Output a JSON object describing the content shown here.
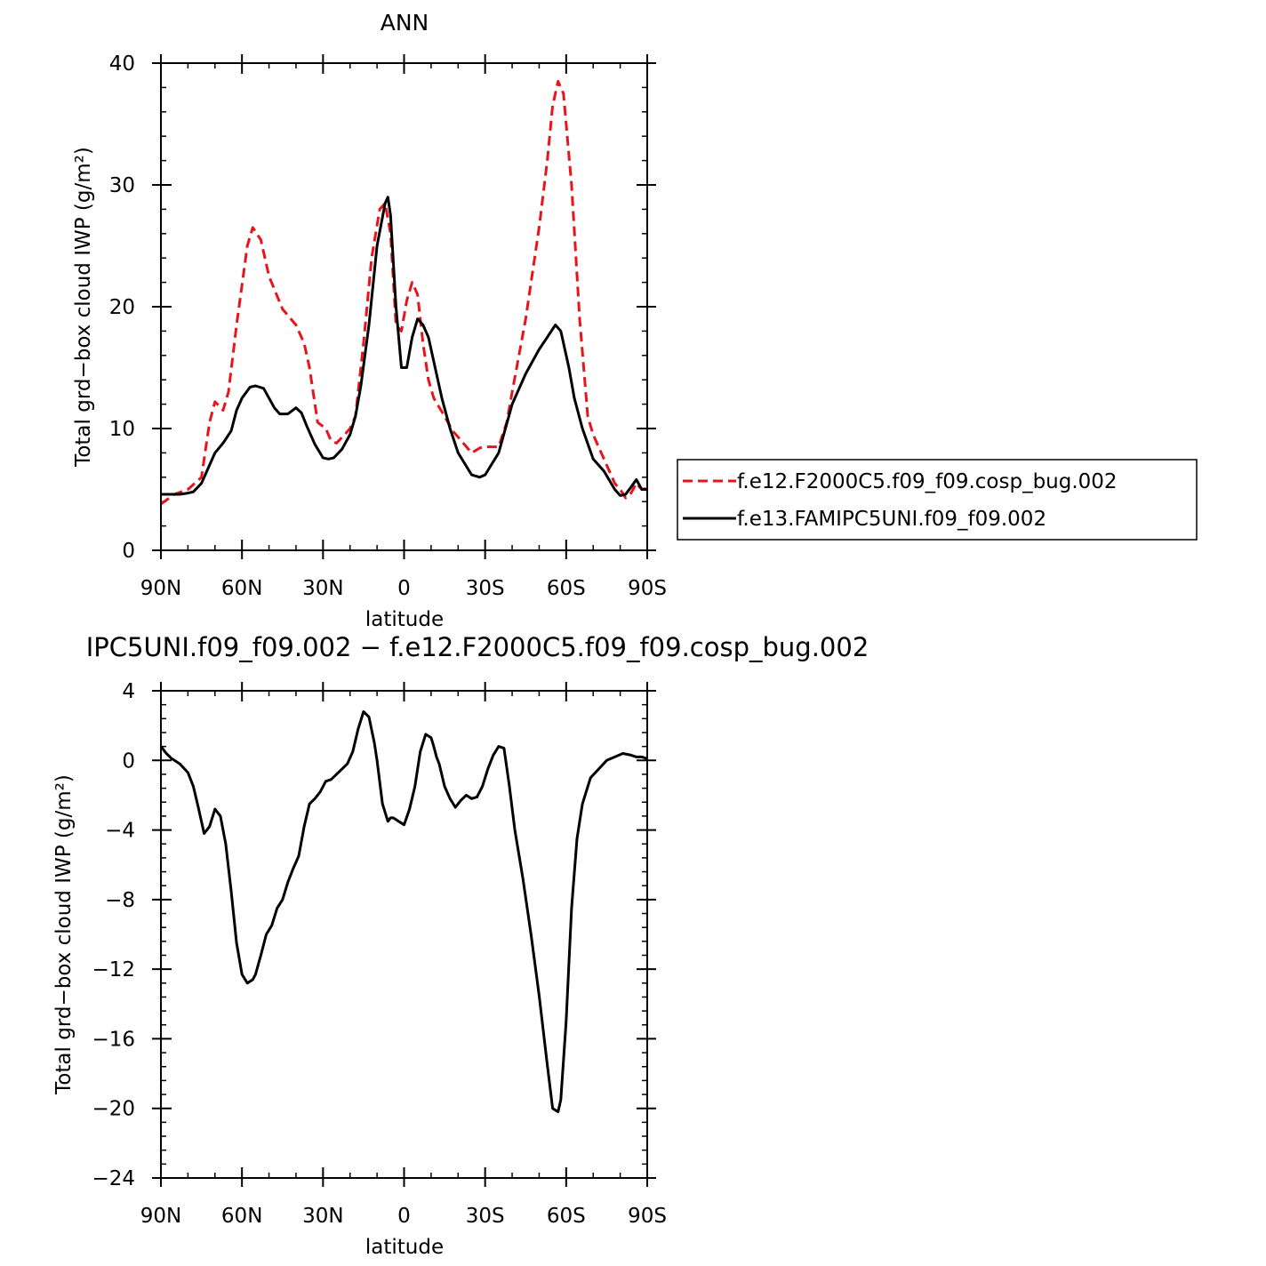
{
  "chart_data": [
    {
      "type": "line",
      "title": "ANN",
      "xlabel": "latitude",
      "ylabel": "Total grd−box cloud IWP (g/m²)",
      "xlim": [
        -90,
        90
      ],
      "ylim": [
        0,
        40
      ],
      "x_ticks": [
        {
          "value": -90,
          "label": "90N"
        },
        {
          "value": -60,
          "label": "60N"
        },
        {
          "value": -30,
          "label": "30N"
        },
        {
          "value": 0,
          "label": "0"
        },
        {
          "value": 30,
          "label": "30S"
        },
        {
          "value": 60,
          "label": "60S"
        },
        {
          "value": 90,
          "label": "90S"
        }
      ],
      "y_ticks": [
        {
          "value": 0,
          "label": "0"
        },
        {
          "value": 10,
          "label": "10"
        },
        {
          "value": 20,
          "label": "20"
        },
        {
          "value": 30,
          "label": "30"
        },
        {
          "value": 40,
          "label": "40"
        }
      ],
      "legend": "right",
      "series": [
        {
          "name": "f.e12.F2000C5.f09_f09.cosp_bug.002",
          "color": "#e8141c",
          "style": "dashed",
          "x": [
            -90,
            -85,
            -80,
            -75,
            -72,
            -70,
            -67,
            -65,
            -62,
            -58,
            -56,
            -53,
            -50,
            -45,
            -40,
            -37,
            -35,
            -32,
            -29,
            -27,
            -25,
            -22,
            -20,
            -18,
            -15,
            -12,
            -9,
            -7,
            -5,
            -3,
            -1,
            1,
            3,
            5,
            7,
            9,
            11,
            15,
            18,
            20,
            25,
            28,
            30,
            32,
            35,
            38,
            40,
            45,
            50,
            53,
            55,
            57,
            59,
            62,
            65,
            68,
            70,
            75,
            78,
            80,
            82,
            84,
            86,
            88,
            90
          ],
          "y": [
            3.8,
            4.6,
            5.0,
            6.0,
            10.5,
            12.2,
            11.5,
            13.0,
            18.5,
            25.0,
            26.5,
            25.5,
            22.5,
            19.8,
            18.5,
            17.0,
            15.0,
            10.5,
            10.0,
            9.0,
            8.8,
            9.5,
            10.0,
            11.0,
            17.0,
            24.0,
            28.0,
            28.5,
            26.0,
            18.5,
            18.0,
            20.5,
            22.0,
            21.0,
            17.0,
            14.0,
            12.5,
            11.0,
            9.8,
            9.3,
            8.0,
            8.4,
            8.5,
            8.5,
            8.5,
            10.5,
            13.0,
            19.0,
            26.5,
            32.0,
            36.5,
            38.5,
            37.5,
            30.0,
            19.0,
            11.0,
            9.5,
            7.0,
            5.5,
            5.0,
            4.3,
            4.7,
            5.5,
            5.0,
            5.1
          ]
        },
        {
          "name": "f.e13.FAMIPC5UNI.f09_f09.002",
          "color": "#000000",
          "style": "solid",
          "x": [
            -90,
            -87,
            -85,
            -83,
            -80,
            -78,
            -75,
            -72,
            -70,
            -67,
            -64,
            -62,
            -60,
            -57,
            -55,
            -52,
            -50,
            -48,
            -46,
            -43,
            -40,
            -38,
            -36,
            -33,
            -30,
            -28,
            -26,
            -23,
            -20,
            -18,
            -16,
            -13,
            -10,
            -7,
            -6,
            -5,
            -3,
            -1,
            1,
            3,
            5,
            7,
            9,
            11,
            14,
            17,
            20,
            25,
            28,
            30,
            35,
            40,
            45,
            50,
            53,
            56,
            58,
            61,
            63,
            66,
            70,
            74,
            78,
            80,
            82,
            84,
            86,
            88,
            90
          ],
          "y": [
            4.6,
            4.6,
            4.6,
            4.6,
            4.7,
            4.8,
            5.5,
            7.0,
            8.0,
            8.8,
            9.8,
            11.5,
            12.5,
            13.4,
            13.5,
            13.3,
            12.5,
            11.7,
            11.2,
            11.2,
            11.7,
            11.3,
            10.2,
            8.7,
            7.6,
            7.5,
            7.6,
            8.3,
            9.5,
            11.0,
            13.5,
            18.5,
            25.0,
            28.5,
            29.0,
            27.5,
            20.0,
            15.0,
            15.0,
            17.5,
            19.0,
            18.5,
            17.5,
            15.5,
            12.5,
            10.0,
            8.0,
            6.2,
            6.0,
            6.2,
            8.0,
            12.0,
            14.5,
            16.5,
            17.5,
            18.5,
            18.0,
            15.0,
            12.5,
            10.0,
            7.5,
            6.5,
            5.0,
            4.5,
            4.6,
            5.2,
            5.8,
            5.0,
            5.0
          ]
        }
      ]
    },
    {
      "type": "line",
      "title": "IPC5UNI.f09_f09.002 − f.e12.F2000C5.f09_f09.cosp_bug.002",
      "xlabel": "latitude",
      "ylabel": "Total grd−box cloud IWP (g/m²)",
      "xlim": [
        -90,
        90
      ],
      "ylim": [
        -24,
        4
      ],
      "x_ticks": [
        {
          "value": -90,
          "label": "90N"
        },
        {
          "value": -60,
          "label": "60N"
        },
        {
          "value": -30,
          "label": "30N"
        },
        {
          "value": 0,
          "label": "0"
        },
        {
          "value": 30,
          "label": "30S"
        },
        {
          "value": 60,
          "label": "60S"
        },
        {
          "value": 90,
          "label": "90S"
        }
      ],
      "y_ticks": [
        {
          "value": 4,
          "label": "4"
        },
        {
          "value": 0,
          "label": "0"
        },
        {
          "value": -4,
          "label": "−4"
        },
        {
          "value": -8,
          "label": "−8"
        },
        {
          "value": -12,
          "label": "−12"
        },
        {
          "value": -16,
          "label": "−16"
        },
        {
          "value": -20,
          "label": "−20"
        },
        {
          "value": -24,
          "label": "−24"
        }
      ],
      "series": [
        {
          "color": "#000000",
          "style": "solid",
          "x": [
            -90,
            -88,
            -86,
            -83,
            -80,
            -78,
            -76,
            -74,
            -72,
            -70,
            -68,
            -66,
            -64,
            -62,
            -60,
            -58,
            -56,
            -55,
            -53,
            -51,
            -49,
            -47,
            -45,
            -43,
            -41,
            -39,
            -37,
            -35,
            -33,
            -31,
            -29,
            -27,
            -25,
            -23,
            -21,
            -19,
            -17,
            -15,
            -13,
            -11,
            -10,
            -8,
            -6,
            -5,
            -4,
            -2,
            0,
            2,
            4,
            6,
            8,
            10,
            11,
            12,
            13,
            15,
            17,
            19,
            21,
            23,
            25,
            27,
            29,
            31,
            33,
            35,
            37,
            39,
            41,
            44,
            47,
            50,
            53,
            55,
            57,
            58,
            60,
            62,
            64,
            66,
            69,
            72,
            75,
            78,
            81,
            84,
            86,
            88,
            90
          ],
          "y": [
            0.8,
            0.4,
            0.1,
            -0.2,
            -0.7,
            -1.5,
            -2.8,
            -4.2,
            -3.8,
            -2.8,
            -3.2,
            -4.8,
            -7.5,
            -10.5,
            -12.3,
            -12.8,
            -12.6,
            -12.3,
            -11.2,
            -10.0,
            -9.5,
            -8.5,
            -8.0,
            -7.0,
            -6.2,
            -5.5,
            -3.8,
            -2.5,
            -2.2,
            -1.8,
            -1.2,
            -1.1,
            -0.8,
            -0.5,
            -0.2,
            0.5,
            1.8,
            2.8,
            2.5,
            1.0,
            0.0,
            -2.5,
            -3.5,
            -3.3,
            -3.3,
            -3.5,
            -3.7,
            -2.8,
            -1.5,
            0.5,
            1.5,
            1.3,
            0.8,
            0.2,
            -0.2,
            -1.5,
            -2.2,
            -2.7,
            -2.3,
            -2.0,
            -2.2,
            -2.1,
            -1.5,
            -0.5,
            0.3,
            0.8,
            0.7,
            -1.5,
            -4.0,
            -6.8,
            -10.0,
            -13.5,
            -17.5,
            -20.0,
            -20.2,
            -19.5,
            -15.0,
            -8.5,
            -4.5,
            -2.5,
            -1.0,
            -0.5,
            0.0,
            0.2,
            0.4,
            0.3,
            0.2,
            0.2,
            0.1
          ]
        }
      ]
    }
  ]
}
